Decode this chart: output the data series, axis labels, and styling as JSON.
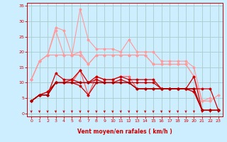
{
  "bg_color": "#cceeff",
  "grid_color": "#aacccc",
  "x_label": "Vent moyen/en rafales ( km/h )",
  "x_ticks": [
    0,
    1,
    2,
    3,
    4,
    5,
    6,
    7,
    8,
    9,
    10,
    11,
    12,
    13,
    14,
    15,
    16,
    17,
    18,
    19,
    20,
    21,
    22,
    23
  ],
  "y_ticks": [
    0,
    5,
    10,
    15,
    20,
    25,
    30,
    35
  ],
  "ylim": [
    -1,
    36
  ],
  "xlim": [
    -0.5,
    23.5
  ],
  "series": [
    {
      "color": "#ff9999",
      "lw": 0.8,
      "marker": "D",
      "ms": 1.5,
      "x": [
        0,
        1,
        2,
        3,
        4,
        5,
        6,
        7,
        8,
        9,
        10,
        11,
        12,
        13,
        14,
        15,
        16,
        17,
        18,
        19,
        20,
        21,
        22
      ],
      "y": [
        11,
        17,
        19,
        28,
        27,
        19,
        34,
        24,
        21,
        21,
        21,
        20,
        24,
        20,
        20,
        20,
        17,
        17,
        17,
        17,
        15,
        4,
        5
      ]
    },
    {
      "color": "#ff9999",
      "lw": 0.8,
      "marker": "D",
      "ms": 1.5,
      "x": [
        0,
        1,
        2,
        3,
        4,
        5,
        6,
        7,
        8,
        9,
        10,
        11,
        12,
        13,
        14,
        15,
        16,
        17,
        18,
        19,
        20,
        21,
        22
      ],
      "y": [
        11,
        17,
        19,
        19,
        19,
        19,
        20,
        16,
        19,
        19,
        19,
        19,
        19,
        19,
        19,
        16,
        16,
        16,
        16,
        16,
        12,
        4,
        4
      ]
    },
    {
      "color": "#ff9999",
      "lw": 0.8,
      "marker": "D",
      "ms": 1.5,
      "x": [
        0,
        1,
        2,
        3,
        4,
        5,
        6,
        7,
        8,
        9,
        10,
        11,
        12,
        13,
        14,
        15,
        16,
        17,
        18,
        19,
        20,
        21,
        22,
        23
      ],
      "y": [
        11,
        17,
        19,
        27,
        19,
        19,
        19,
        16,
        19,
        19,
        19,
        19,
        19,
        19,
        19,
        16,
        16,
        16,
        16,
        16,
        12,
        4,
        4,
        6
      ]
    },
    {
      "color": "#ff6666",
      "lw": 0.9,
      "marker": "D",
      "ms": 1.5,
      "x": [
        0,
        1,
        2,
        3,
        4,
        5,
        6,
        7,
        8,
        9,
        10,
        11,
        12,
        13,
        14,
        15,
        16,
        17,
        18,
        19,
        20,
        21,
        22,
        23
      ],
      "y": [
        4,
        6,
        7,
        10,
        10,
        10,
        14,
        6,
        12,
        11,
        11,
        12,
        12,
        8,
        8,
        8,
        8,
        8,
        8,
        8,
        7,
        1,
        1,
        1
      ]
    },
    {
      "color": "#cc0000",
      "lw": 0.9,
      "marker": "D",
      "ms": 1.5,
      "x": [
        0,
        1,
        2,
        3,
        4,
        5,
        6,
        7,
        8,
        9,
        10,
        11,
        12,
        13,
        14,
        15,
        16,
        17,
        18,
        19,
        20,
        21,
        22,
        23
      ],
      "y": [
        4,
        6,
        7,
        10,
        10,
        10,
        9,
        6,
        10,
        10,
        10,
        11,
        10,
        8,
        8,
        8,
        8,
        8,
        8,
        8,
        7,
        1,
        1,
        1
      ]
    },
    {
      "color": "#cc0000",
      "lw": 0.9,
      "marker": "D",
      "ms": 1.5,
      "x": [
        0,
        1,
        2,
        3,
        4,
        5,
        6,
        7,
        8,
        9,
        10,
        11,
        12,
        13,
        14,
        15,
        16,
        17,
        18,
        19,
        20,
        21,
        22,
        23
      ],
      "y": [
        4,
        6,
        6,
        10,
        10,
        11,
        14,
        10,
        12,
        11,
        11,
        12,
        11,
        11,
        11,
        11,
        8,
        8,
        8,
        8,
        12,
        1,
        1,
        1
      ]
    },
    {
      "color": "#cc0000",
      "lw": 0.9,
      "marker": "D",
      "ms": 1.5,
      "x": [
        0,
        1,
        2,
        3,
        4,
        5,
        6,
        7,
        8,
        9,
        10,
        11,
        12,
        13,
        14,
        15,
        16,
        17,
        18,
        19,
        20,
        21,
        22,
        23
      ],
      "y": [
        4,
        6,
        6,
        13,
        11,
        11,
        10,
        10,
        11,
        10,
        10,
        10,
        10,
        10,
        10,
        10,
        8,
        8,
        8,
        8,
        8,
        8,
        8,
        1
      ]
    },
    {
      "color": "#aa0000",
      "lw": 1.0,
      "marker": "D",
      "ms": 1.5,
      "x": [
        0,
        1,
        2,
        3,
        4,
        5,
        6,
        7,
        8,
        9,
        10,
        11,
        12,
        13,
        14,
        15,
        16,
        17,
        18,
        19,
        20,
        21,
        22,
        23
      ],
      "y": [
        4,
        6,
        6,
        10,
        10,
        10,
        10,
        10,
        10,
        10,
        10,
        10,
        10,
        8,
        8,
        8,
        8,
        8,
        8,
        8,
        8,
        1,
        1,
        1
      ]
    }
  ],
  "arrow_color": "#cc0000",
  "xlabel_color": "#cc0000",
  "tick_color": "#cc0000",
  "spine_color": "#cc0000"
}
